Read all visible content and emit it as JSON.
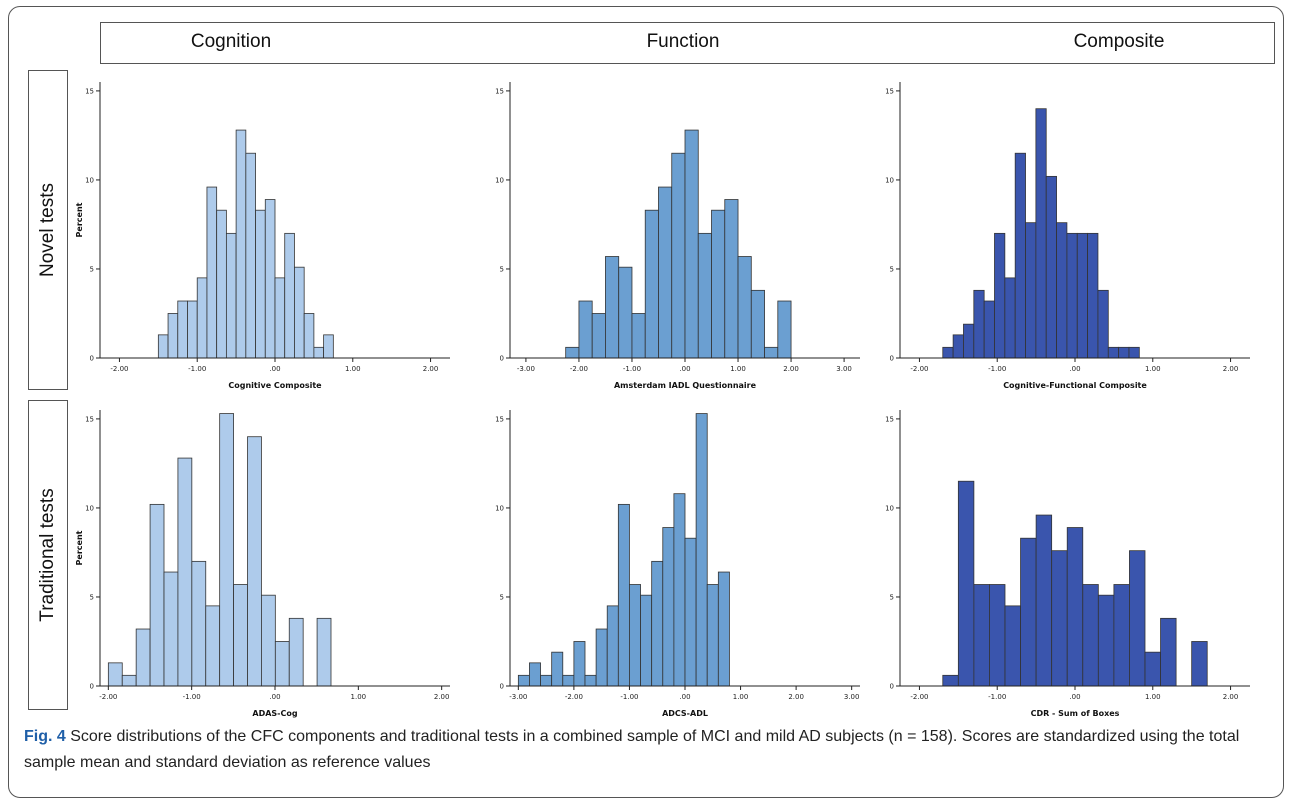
{
  "columns": [
    "Cognition",
    "Function",
    "Composite"
  ],
  "rows": [
    "Novel tests",
    "Traditional tests"
  ],
  "caption": {
    "label": "Fig. 4",
    "text": "Score distributions of the CFC components and traditional tests in a combined sample of MCI and mild AD subjects (n = 158). Scores are standardized using the total sample mean and standard deviation as reference values"
  },
  "colors": {
    "light": "#aecbeb",
    "medium": "#6b9fd1",
    "dark": "#3a55ad",
    "stroke": "#333333"
  },
  "chart_data": [
    {
      "type": "bar",
      "panel": "novel-cognition",
      "xlabel": "Cognitive Composite",
      "ylabel": "Percent",
      "xlim": [
        -2.25,
        2.25
      ],
      "xticks": [
        "-2.00",
        "-1.00",
        ".00",
        "1.00",
        "2.00"
      ],
      "ylim": [
        0,
        15.5
      ],
      "yticks": [
        "0",
        "5",
        "10",
        "15"
      ],
      "bin_start": -1.5,
      "bin_width": 0.125,
      "color": "light",
      "values": [
        1.3,
        2.5,
        3.2,
        3.2,
        4.5,
        9.6,
        8.3,
        7.0,
        12.8,
        11.5,
        8.3,
        8.9,
        4.5,
        7.0,
        5.1,
        2.5,
        0.6,
        1.3
      ]
    },
    {
      "type": "bar",
      "panel": "novel-function",
      "xlabel": "Amsterdam IADL Questionnaire",
      "ylabel": "",
      "xlim": [
        -3.3,
        3.3
      ],
      "xticks": [
        "-3.00",
        "-2.00",
        "-1.00",
        ".00",
        "1.00",
        "2.00",
        "3.00"
      ],
      "ylim": [
        0,
        15.5
      ],
      "yticks": [
        "0",
        "5",
        "10",
        "15"
      ],
      "bin_start": -2.25,
      "bin_width": 0.25,
      "color": "medium",
      "values": [
        0.6,
        3.2,
        2.5,
        5.7,
        5.1,
        2.5,
        8.3,
        9.6,
        11.5,
        12.8,
        7.0,
        8.3,
        8.9,
        5.7,
        3.8,
        0.6,
        3.2
      ]
    },
    {
      "type": "bar",
      "panel": "novel-composite",
      "xlabel": "Cognitive-Functional Composite",
      "ylabel": "",
      "xlim": [
        -2.25,
        2.25
      ],
      "xticks": [
        "-2.00",
        "-1.00",
        ".00",
        "1.00",
        "2.00"
      ],
      "ylim": [
        0,
        15.5
      ],
      "yticks": [
        "0",
        "5",
        "10",
        "15"
      ],
      "bin_start": -1.7,
      "bin_width": 0.133,
      "color": "dark",
      "values": [
        0.6,
        1.3,
        1.9,
        3.8,
        3.2,
        7.0,
        4.5,
        11.5,
        7.6,
        14.0,
        10.2,
        7.6,
        7.0,
        7.0,
        7.0,
        3.8,
        0.6,
        0.6,
        0.6
      ]
    },
    {
      "type": "bar",
      "panel": "traditional-cognition",
      "xlabel": "ADAS-Cog",
      "ylabel": "Percent",
      "xlim": [
        -2.1,
        2.1
      ],
      "xticks": [
        "-2.00",
        "-1.00",
        ".00",
        "1.00",
        "2.00"
      ],
      "ylim": [
        0,
        15.5
      ],
      "yticks": [
        "0",
        "5",
        "10",
        "15"
      ],
      "bin_start": -2.0,
      "bin_width": 0.167,
      "color": "light",
      "values": [
        1.3,
        0.6,
        3.2,
        10.2,
        6.4,
        12.8,
        7.0,
        4.5,
        15.3,
        5.7,
        14.0,
        5.1,
        2.5,
        3.8,
        0,
        3.8
      ]
    },
    {
      "type": "bar",
      "panel": "traditional-function",
      "xlabel": "ADCS-ADL",
      "ylabel": "",
      "xlim": [
        -3.15,
        3.15
      ],
      "xticks": [
        "-3.00",
        "-2.00",
        "-1.00",
        ".00",
        "1.00",
        "2.00",
        "3.00"
      ],
      "ylim": [
        0,
        15.5
      ],
      "yticks": [
        "0",
        "5",
        "10",
        "15"
      ],
      "bin_start": -3.0,
      "bin_width": 0.2,
      "color": "medium",
      "values": [
        0.6,
        1.3,
        0.6,
        1.9,
        0.6,
        2.5,
        0.6,
        3.2,
        4.5,
        10.2,
        5.7,
        5.1,
        7.0,
        8.9,
        10.8,
        8.3,
        15.3,
        5.7,
        6.4
      ]
    },
    {
      "type": "bar",
      "panel": "traditional-composite",
      "xlabel": "CDR - Sum of Boxes",
      "ylabel": "",
      "xlim": [
        -2.25,
        2.25
      ],
      "xticks": [
        "-2.00",
        "-1.00",
        ".00",
        "1.00",
        "2.00"
      ],
      "ylim": [
        0,
        15.5
      ],
      "yticks": [
        "0",
        "5",
        "10",
        "15"
      ],
      "bin_start": -1.7,
      "bin_width": 0.2,
      "color": "dark",
      "values": [
        0.6,
        11.5,
        5.7,
        5.7,
        4.5,
        8.3,
        9.6,
        7.6,
        8.9,
        5.7,
        5.1,
        5.7,
        7.6,
        1.9,
        3.8,
        0,
        2.5
      ]
    }
  ]
}
